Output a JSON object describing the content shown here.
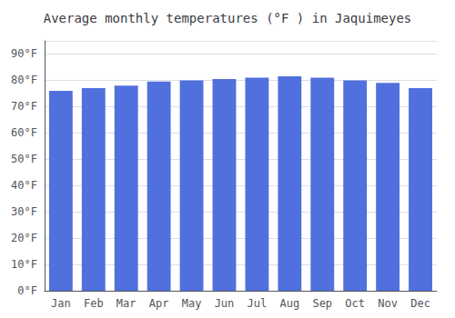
{
  "chart_data": {
    "type": "bar",
    "title": "Average monthly temperatures (°F ) in Jaquimeyes",
    "categories": [
      "Jan",
      "Feb",
      "Mar",
      "Apr",
      "May",
      "Jun",
      "Jul",
      "Aug",
      "Sep",
      "Oct",
      "Nov",
      "Dec"
    ],
    "values": [
      76,
      77,
      78,
      79.5,
      80,
      80.5,
      81,
      81.5,
      81,
      80,
      79,
      77
    ],
    "ylim": [
      0,
      95
    ],
    "yticks": [
      {
        "value": 0,
        "label": "0°F"
      },
      {
        "value": 10,
        "label": "10°F"
      },
      {
        "value": 20,
        "label": "20°F"
      },
      {
        "value": 30,
        "label": "30°F"
      },
      {
        "value": 40,
        "label": "40°F"
      },
      {
        "value": 50,
        "label": "50°F"
      },
      {
        "value": 60,
        "label": "60°F"
      },
      {
        "value": 70,
        "label": "70°F"
      },
      {
        "value": 80,
        "label": "80°F"
      },
      {
        "value": 90,
        "label": "90°F"
      }
    ],
    "grid": true
  }
}
